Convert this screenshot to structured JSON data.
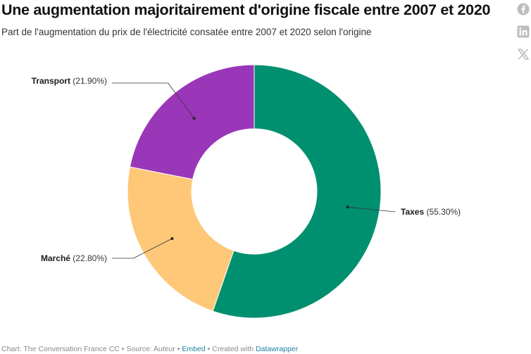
{
  "header": {
    "title": "Une augmentation majoritairement d'origine fiscale entre 2007 et 2020",
    "subtitle": "Part de l'augmentation du prix de l'électricité consatée entre 2007 et 2020 selon l'origine"
  },
  "share": {
    "icons": [
      "facebook-icon",
      "linkedin-icon",
      "x-icon"
    ]
  },
  "chart_data": {
    "type": "pie",
    "donut": true,
    "slices": [
      {
        "name": "Taxes",
        "value": 55.3,
        "value_label": "(55.30%)",
        "color": "#00906f"
      },
      {
        "name": "Marché",
        "value": 22.8,
        "value_label": "(22.80%)",
        "color": "#fec878"
      },
      {
        "name": "Transport",
        "value": 21.9,
        "value_label": "(21.90%)",
        "color": "#9a37b9"
      }
    ]
  },
  "footer": {
    "prefix": "Chart: The Conversation France CC • Source: Auteur • ",
    "embed": "Embed",
    "middle": " • Created with ",
    "datawrapper": "Datawrapper"
  }
}
